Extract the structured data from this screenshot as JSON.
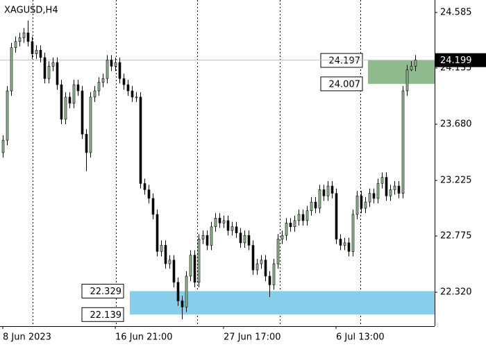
{
  "chart_data": {
    "type": "candlestick",
    "title": "XAGUSD,H4",
    "open": [
      23.45,
      23.55,
      23.95,
      24.3,
      24.35,
      24.38,
      24.42,
      24.35,
      24.25,
      24.28,
      24.22,
      24.05,
      24.15,
      24.18,
      24.0,
      23.72,
      23.9,
      23.85,
      24.0,
      23.95,
      23.6,
      23.45,
      23.9,
      23.95,
      24.02,
      24.05,
      24.2,
      24.15,
      24.18,
      24.05,
      24.0,
      23.95,
      23.9,
      23.9,
      23.2,
      23.15,
      23.08,
      22.95,
      22.65,
      22.7,
      22.55,
      22.58,
      22.4,
      22.25,
      22.2,
      22.45,
      22.62,
      22.4,
      22.75,
      22.78,
      22.7,
      22.85,
      22.92,
      22.88,
      22.9,
      22.82,
      22.85,
      22.8,
      22.72,
      22.78,
      22.7,
      22.5,
      22.55,
      22.58,
      22.45,
      22.38,
      22.55,
      22.75,
      22.78,
      22.88,
      22.85,
      22.9,
      22.95,
      22.9,
      22.98,
      23.05,
      23.0,
      23.15,
      23.1,
      23.18,
      23.12,
      22.75,
      22.7,
      22.72,
      22.65,
      22.95,
      23.1,
      23.0,
      23.05,
      23.12,
      23.08,
      23.2,
      23.25,
      23.1,
      23.15,
      23.18,
      23.12,
      23.95,
      24.12,
      24.15
    ],
    "high": [
      23.59,
      23.99,
      24.34,
      24.39,
      24.42,
      24.46,
      24.52,
      24.39,
      24.32,
      24.32,
      24.26,
      24.19,
      24.22,
      24.22,
      24.04,
      23.94,
      23.94,
      24.04,
      24.04,
      23.99,
      23.64,
      23.94,
      23.99,
      24.06,
      24.09,
      24.24,
      24.24,
      24.22,
      24.22,
      24.09,
      24.04,
      23.99,
      23.94,
      23.94,
      23.24,
      23.19,
      23.12,
      22.99,
      22.74,
      22.74,
      22.62,
      22.62,
      22.44,
      22.29,
      22.49,
      22.66,
      22.66,
      22.79,
      22.82,
      22.82,
      22.89,
      22.96,
      22.96,
      22.94,
      22.94,
      22.89,
      22.89,
      22.84,
      22.82,
      22.82,
      22.74,
      22.59,
      22.62,
      22.62,
      22.49,
      22.59,
      22.79,
      22.82,
      22.92,
      22.92,
      22.94,
      22.99,
      22.99,
      23.02,
      23.09,
      23.09,
      23.19,
      23.19,
      23.22,
      23.22,
      23.16,
      22.79,
      22.76,
      22.76,
      22.99,
      23.14,
      23.14,
      23.09,
      23.16,
      23.16,
      23.24,
      23.29,
      23.29,
      23.19,
      23.22,
      23.22,
      23.99,
      24.16,
      24.19,
      24.24
    ],
    "low": [
      23.41,
      23.51,
      23.91,
      24.26,
      24.31,
      24.34,
      24.31,
      24.21,
      24.21,
      24.18,
      24.01,
      24.01,
      24.11,
      23.96,
      23.68,
      23.68,
      23.81,
      23.81,
      23.91,
      23.56,
      23.3,
      23.41,
      23.86,
      23.91,
      23.98,
      24.01,
      24.11,
      24.11,
      24.01,
      23.96,
      23.91,
      23.86,
      23.86,
      23.16,
      23.11,
      23.04,
      22.91,
      22.61,
      22.61,
      22.51,
      22.51,
      22.36,
      22.21,
      22.1,
      22.16,
      22.41,
      22.36,
      22.36,
      22.71,
      22.66,
      22.66,
      22.81,
      22.84,
      22.84,
      22.78,
      22.78,
      22.76,
      22.68,
      22.68,
      22.66,
      22.46,
      22.46,
      22.51,
      22.41,
      22.28,
      22.34,
      22.51,
      22.71,
      22.74,
      22.81,
      22.81,
      22.86,
      22.86,
      22.86,
      22.94,
      22.96,
      22.96,
      23.06,
      23.06,
      23.08,
      22.71,
      22.66,
      22.66,
      22.61,
      22.61,
      22.91,
      22.96,
      22.96,
      23.01,
      23.04,
      23.04,
      23.16,
      23.06,
      23.06,
      23.11,
      23.08,
      23.08,
      23.91,
      24.11,
      24.11
    ],
    "close": [
      23.55,
      23.95,
      24.3,
      24.35,
      24.38,
      24.42,
      24.35,
      24.25,
      24.28,
      24.22,
      24.05,
      24.15,
      24.18,
      24.0,
      23.72,
      23.9,
      23.85,
      24.0,
      23.95,
      23.6,
      23.45,
      23.9,
      23.95,
      24.02,
      24.05,
      24.2,
      24.15,
      24.18,
      24.05,
      24.0,
      23.95,
      23.9,
      23.9,
      23.2,
      23.15,
      23.08,
      22.95,
      22.65,
      22.7,
      22.55,
      22.58,
      22.4,
      22.25,
      22.2,
      22.45,
      22.62,
      22.4,
      22.75,
      22.78,
      22.7,
      22.85,
      22.92,
      22.88,
      22.9,
      22.82,
      22.85,
      22.8,
      22.72,
      22.78,
      22.7,
      22.5,
      22.55,
      22.58,
      22.45,
      22.38,
      22.55,
      22.75,
      22.78,
      22.88,
      22.85,
      22.9,
      22.95,
      22.9,
      22.98,
      23.05,
      23.0,
      23.15,
      23.1,
      23.18,
      23.12,
      22.75,
      22.7,
      22.72,
      22.65,
      22.95,
      23.1,
      23.0,
      23.05,
      23.12,
      23.08,
      23.2,
      23.25,
      23.1,
      23.15,
      23.18,
      23.12,
      23.95,
      24.12,
      24.15,
      24.199
    ],
    "bull_color": "#8fbc8f",
    "bear_color": "#000000",
    "x_labels": [
      {
        "index": 0,
        "label": "8 Jun 2023"
      },
      {
        "index": 27,
        "label": "16 Jun 21:00"
      },
      {
        "index": 53,
        "label": "27 Jun 17:00"
      },
      {
        "index": 80,
        "label": "6 Jul 13:00"
      }
    ],
    "ylim": [
      22.045,
      24.686
    ],
    "yticks": [
      24.585,
      24.135,
      {
        "value": 23.68,
        "label": "23.680"
      },
      23.225,
      22.775,
      {
        "value": 22.32,
        "label": "22.320"
      }
    ],
    "current_price": 24.199,
    "zones": [
      {
        "top": 24.197,
        "bottom": 24.007,
        "color": "#8fbc8f"
      },
      {
        "top": 22.329,
        "bottom": 22.139,
        "color": "#87ceeb"
      }
    ]
  }
}
